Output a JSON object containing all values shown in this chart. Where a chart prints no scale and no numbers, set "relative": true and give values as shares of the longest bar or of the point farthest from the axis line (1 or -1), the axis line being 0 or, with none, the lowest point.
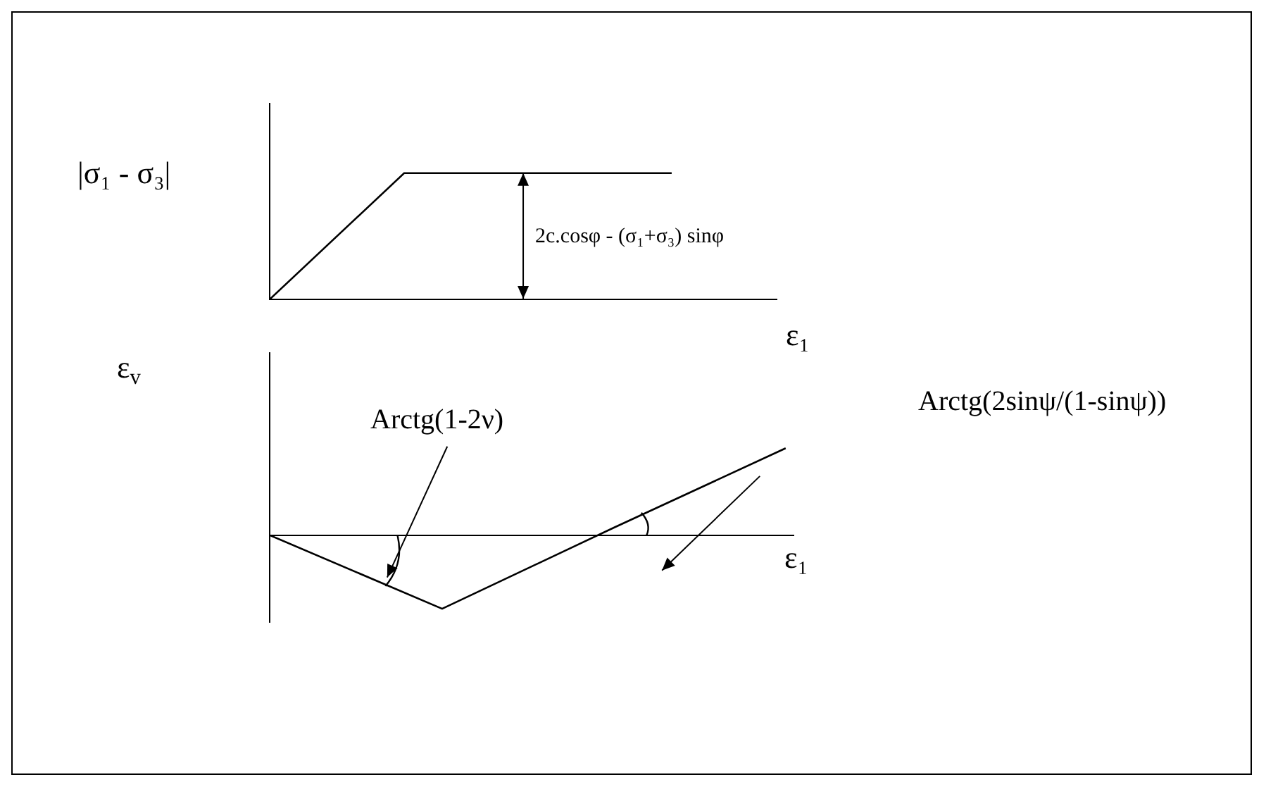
{
  "chart_data": [
    {
      "type": "line",
      "relative": true,
      "categories": [
        null,
        null,
        null,
        null
      ],
      "values": [
        0,
        1,
        1,
        1
      ],
      "color": "#000000",
      "ylabel": "|σ₁ - σ₃|",
      "xlabel": "ε₁",
      "annotations": [
        "2c.cosφ - (σ₁+σ₃) sinφ"
      ],
      "marker": "none",
      "line_style": "solid",
      "grid": false,
      "legend": false,
      "tick_labels": false
    },
    {
      "type": "line",
      "relative": true,
      "categories": [
        null,
        null,
        null,
        null
      ],
      "values": [
        0,
        -0.84,
        0.09,
        1
      ],
      "color": "#000000",
      "ylabel": "ε$_{v}$",
      "xlabel": "ε₁",
      "annotations": [
        "Arctg(1-2ν)",
        "Arctg(2sinψ/(1-sinψ))"
      ],
      "marker": "none",
      "line_style": "solid",
      "grid": false,
      "legend": false,
      "tick_labels": false
    }
  ]
}
